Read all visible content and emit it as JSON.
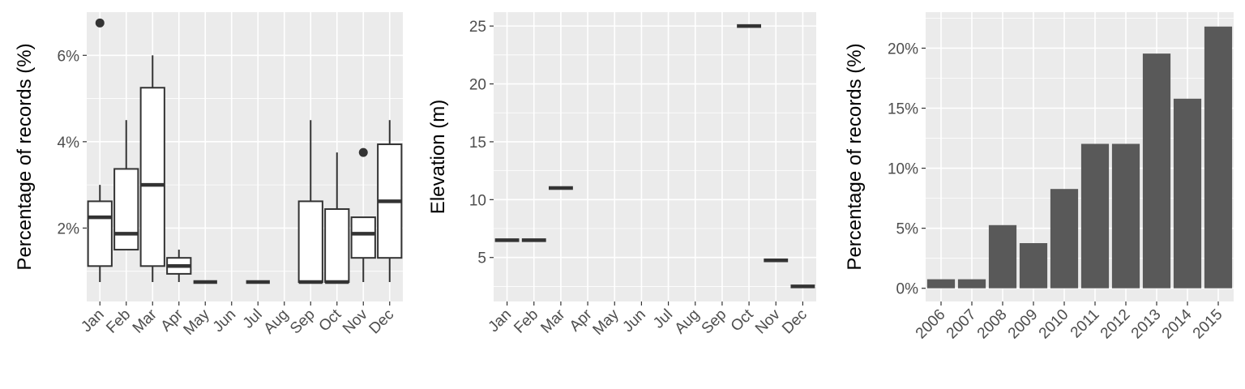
{
  "chart_data": [
    {
      "type": "boxplot",
      "xlabel": "",
      "ylabel": "Percentage of records (%)",
      "categories": [
        "Jan",
        "Feb",
        "Mar",
        "Apr",
        "May",
        "Jun",
        "Jul",
        "Aug",
        "Sep",
        "Oct",
        "Nov",
        "Dec"
      ],
      "ylim": [
        0.3,
        7.0
      ],
      "yticks": [
        2,
        4,
        6
      ],
      "ytick_labels": [
        "2%",
        "4%",
        "6%"
      ],
      "grid": true,
      "boxes": [
        {
          "category": "Jan",
          "min": 0.75,
          "q1": 1.12,
          "median": 2.25,
          "q3": 2.62,
          "max": 3.0,
          "outliers": [
            6.75
          ]
        },
        {
          "category": "Feb",
          "min": 1.5,
          "q1": 1.5,
          "median": 1.87,
          "q3": 3.37,
          "max": 4.5,
          "outliers": []
        },
        {
          "category": "Mar",
          "min": 0.75,
          "q1": 1.12,
          "median": 3.0,
          "q3": 5.25,
          "max": 6.0,
          "outliers": []
        },
        {
          "category": "Apr",
          "min": 0.75,
          "q1": 0.94,
          "median": 1.12,
          "q3": 1.31,
          "max": 1.5,
          "outliers": []
        },
        {
          "category": "May",
          "min": 0.75,
          "q1": 0.75,
          "median": 0.75,
          "q3": 0.75,
          "max": 0.75,
          "outliers": []
        },
        {
          "category": "Jul",
          "min": 0.75,
          "q1": 0.75,
          "median": 0.75,
          "q3": 0.75,
          "max": 0.75,
          "outliers": []
        },
        {
          "category": "Sep",
          "min": 0.75,
          "q1": 0.75,
          "median": 0.75,
          "q3": 2.62,
          "max": 4.5,
          "outliers": []
        },
        {
          "category": "Oct",
          "min": 0.75,
          "q1": 0.75,
          "median": 0.75,
          "q3": 2.44,
          "max": 3.75,
          "outliers": []
        },
        {
          "category": "Nov",
          "min": 0.75,
          "q1": 1.31,
          "median": 1.87,
          "q3": 2.25,
          "max": 2.25,
          "outliers": [
            3.75
          ]
        },
        {
          "category": "Dec",
          "min": 0.75,
          "q1": 1.31,
          "median": 2.62,
          "q3": 3.94,
          "max": 4.5,
          "outliers": []
        }
      ]
    },
    {
      "type": "boxplot",
      "xlabel": "",
      "ylabel": "Elevation (m)",
      "categories": [
        "Jan",
        "Feb",
        "Mar",
        "Apr",
        "May",
        "Jun",
        "Jul",
        "Aug",
        "Sep",
        "Oct",
        "Nov",
        "Dec"
      ],
      "ylim": [
        1.2,
        26.2
      ],
      "yticks": [
        5,
        10,
        15,
        20,
        25
      ],
      "ytick_labels": [
        "5",
        "10",
        "15",
        "20",
        "25"
      ],
      "grid": true,
      "boxes": [
        {
          "category": "Jan",
          "min": 6.5,
          "q1": 6.5,
          "median": 6.5,
          "q3": 6.5,
          "max": 6.5,
          "outliers": []
        },
        {
          "category": "Feb",
          "min": 6.5,
          "q1": 6.5,
          "median": 6.5,
          "q3": 6.5,
          "max": 6.5,
          "outliers": []
        },
        {
          "category": "Mar",
          "min": 11,
          "q1": 11,
          "median": 11,
          "q3": 11,
          "max": 11,
          "outliers": []
        },
        {
          "category": "Oct",
          "min": 25,
          "q1": 25,
          "median": 25,
          "q3": 25,
          "max": 25,
          "outliers": []
        },
        {
          "category": "Nov",
          "min": 4.75,
          "q1": 4.75,
          "median": 4.75,
          "q3": 4.75,
          "max": 4.75,
          "outliers": []
        },
        {
          "category": "Dec",
          "min": 2.5,
          "q1": 2.5,
          "median": 2.5,
          "q3": 2.5,
          "max": 2.5,
          "outliers": []
        }
      ]
    },
    {
      "type": "bar",
      "xlabel": "",
      "ylabel": "Percentage of records (%)",
      "categories": [
        "2006",
        "2007",
        "2008",
        "2009",
        "2010",
        "2011",
        "2012",
        "2013",
        "2014",
        "2015"
      ],
      "values": [
        0.75,
        0.75,
        5.26,
        3.76,
        8.27,
        12.03,
        12.03,
        19.55,
        15.79,
        21.8
      ],
      "ylim": [
        -1.1,
        23.0
      ],
      "yticks": [
        0,
        5,
        10,
        15,
        20
      ],
      "ytick_labels": [
        "0%",
        "5%",
        "10%",
        "15%",
        "20%"
      ],
      "grid": true
    }
  ]
}
